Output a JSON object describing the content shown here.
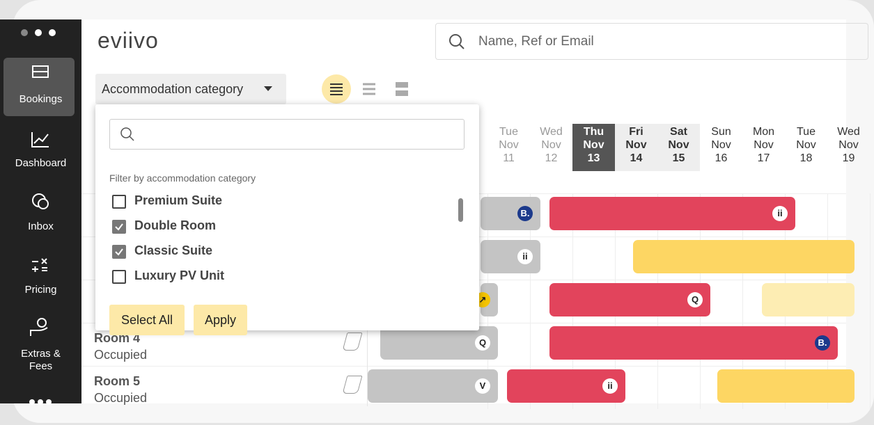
{
  "sidebar": {
    "items": [
      "Bookings",
      "Dashboard",
      "Inbox",
      "Pricing",
      "Extras & Fees"
    ]
  },
  "header": {
    "logo": "eviivo",
    "search_placeholder": "Name, Ref or Email"
  },
  "toolbar": {
    "group_by": "Accommodation category"
  },
  "filter_panel": {
    "hint": "Filter by accommodation category",
    "options": [
      {
        "label": "Premium Suite",
        "checked": false
      },
      {
        "label": "Double Room",
        "checked": true
      },
      {
        "label": "Classic Suite",
        "checked": true
      },
      {
        "label": "Luxury PV Unit",
        "checked": false
      }
    ],
    "buttons": [
      "Select All",
      "Apply"
    ]
  },
  "calendar": {
    "days": [
      {
        "weekday": "Tue",
        "month": "Nov",
        "day": "11",
        "state": "past"
      },
      {
        "weekday": "Wed",
        "month": "Nov",
        "day": "12",
        "state": "past"
      },
      {
        "weekday": "Thu",
        "month": "Nov",
        "day": "13",
        "state": "today"
      },
      {
        "weekday": "Fri",
        "month": "Nov",
        "day": "14",
        "state": "weekend"
      },
      {
        "weekday": "Sat",
        "month": "Nov",
        "day": "15",
        "state": "weekend"
      },
      {
        "weekday": "Sun",
        "month": "Nov",
        "day": "16",
        "state": "normal"
      },
      {
        "weekday": "Mon",
        "month": "Nov",
        "day": "17",
        "state": "normal"
      },
      {
        "weekday": "Tue",
        "month": "Nov",
        "day": "18",
        "state": "normal"
      },
      {
        "weekday": "Wed",
        "month": "Nov",
        "day": "19",
        "state": "normal"
      }
    ]
  },
  "rooms": [
    {
      "name": "Room 4",
      "status": "Occupied"
    },
    {
      "name": "Room 5",
      "status": "Occupied"
    }
  ],
  "bookings": [
    {
      "color": "#c4c4c4",
      "badge": "B."
    },
    {
      "color": "#e2445c",
      "badge": "ii"
    },
    {
      "color": "#c4c4c4",
      "badge": "ii"
    },
    {
      "color": "#fdd663"
    },
    {
      "color": "#c4c4c4",
      "badge": "↗"
    },
    {
      "color": "#e2445c",
      "badge": "Q"
    },
    {
      "color": "#fdedb3"
    },
    {
      "color": "#c4c4c4",
      "badge": "Q"
    },
    {
      "color": "#e2445c",
      "badge": "B."
    },
    {
      "color": "#c4c4c4",
      "badge": "V"
    },
    {
      "color": "#e2445c",
      "badge": "ii"
    },
    {
      "color": "#fdd663"
    }
  ]
}
